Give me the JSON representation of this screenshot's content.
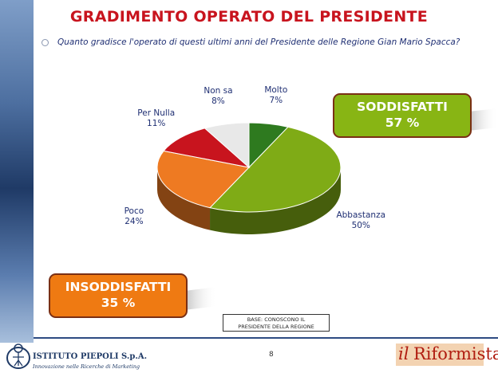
{
  "title": {
    "part1": "GRADIMENTO",
    "part2": "OPERATO DEL PRESIDENTE"
  },
  "question": "Quanto gradisce l'operato di questi ultimi anni del Presidente delle Regione Gian Mario Spacca?",
  "chart_data": {
    "type": "pie",
    "title": "",
    "slices": [
      {
        "label": "Molto",
        "value": 7,
        "display": "7%",
        "color": "#2e7a1f"
      },
      {
        "label": "Abbastanza",
        "value": 50,
        "display": "50%",
        "color": "#7fab16"
      },
      {
        "label": "Poco",
        "value": 24,
        "display": "24%",
        "color": "#ee7a22"
      },
      {
        "label": "Per Nulla",
        "value": 11,
        "display": "11%",
        "color": "#c8141e"
      },
      {
        "label": "Non sa",
        "value": 8,
        "display": "8%",
        "color": "#e8e8e8"
      }
    ],
    "three_d": true
  },
  "callouts": {
    "satisfied": {
      "label": "SODDISFATTI",
      "value": "57 %",
      "color": "#88b514"
    },
    "unsatisfied": {
      "label": "INSODDISFATTI",
      "value": "35 %",
      "color": "#ef7a12"
    }
  },
  "base_note": {
    "line1": "BASE: CONOSCONO IL",
    "line2": "PRESIDENTE DELLA REGIONE"
  },
  "page_number": "8",
  "footer": {
    "left_logo": {
      "name": "ISTITUTO PIEPOLI S.p.A.",
      "tagline": "Innovazione nelle Ricerche di Marketing"
    },
    "right_logo": {
      "prefix": "il",
      "name": "Riformista"
    }
  }
}
